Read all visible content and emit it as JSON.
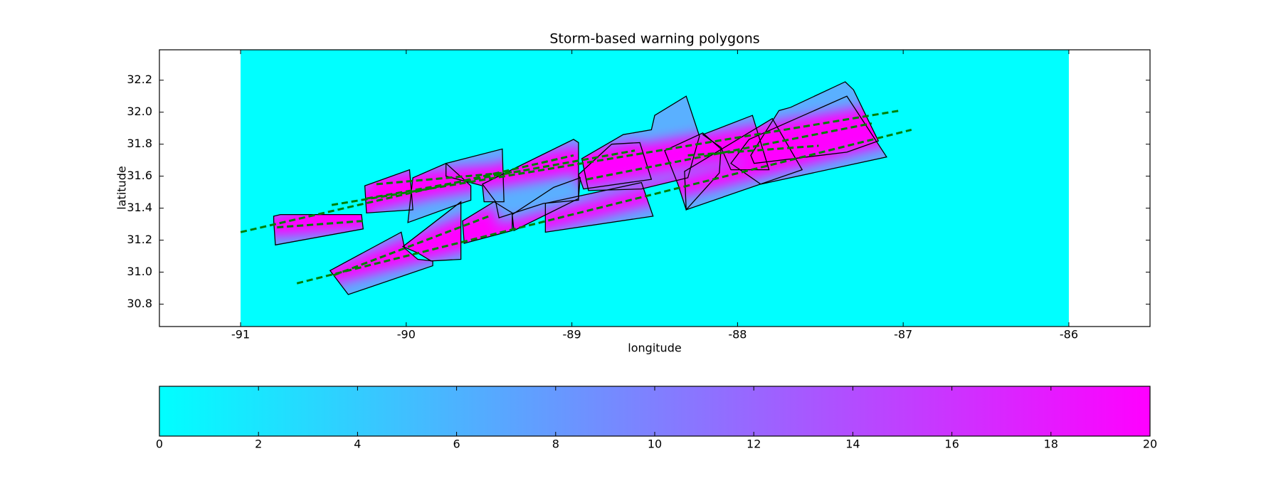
{
  "chart_data": {
    "type": "map",
    "title": "Storm-based warning polygons",
    "xlabel": "longitude",
    "ylabel": "latitude",
    "xlim": [
      -91.49,
      -85.51
    ],
    "ylim": [
      30.66,
      32.39
    ],
    "xticks": [
      -91,
      -90,
      -89,
      -88,
      -87,
      -86
    ],
    "yticks": [
      30.8,
      {
        "value": 31,
        "label": "31.0"
      },
      31.2,
      31.4,
      31.6,
      31.8,
      {
        "value": 32,
        "label": "32.0"
      },
      32.2
    ],
    "field_xlim": [
      -91,
      -86
    ],
    "field_color": "#00ffff",
    "polygon_edge_color": "#000000",
    "track_color": "#008000",
    "polygons": [
      {
        "lon": [
          -90.8,
          -90.76,
          -90.27,
          -90.26,
          -90.79,
          -90.8
        ],
        "lat": [
          31.35,
          31.36,
          31.36,
          31.27,
          31.17,
          31.32
        ]
      },
      {
        "lon": [
          -90.46,
          -90.03,
          -90.01,
          -89.93,
          -89.84,
          -89.84,
          -90.35
        ],
        "lat": [
          31.01,
          31.25,
          31.15,
          31.08,
          31.07,
          31.04,
          30.86
        ]
      },
      {
        "lon": [
          -90.25,
          -89.98,
          -89.97,
          -89.96,
          -90.24
        ],
        "lat": [
          31.54,
          31.64,
          31.52,
          31.39,
          31.37
        ]
      },
      {
        "lon": [
          -89.99,
          -89.96,
          -89.76,
          -89.61,
          -89.61,
          -89.67
        ],
        "lat": [
          31.31,
          31.59,
          31.68,
          31.54,
          31.45,
          31.43
        ]
      },
      {
        "lon": [
          -89.76,
          -89.42,
          -89.41,
          -89.53,
          -89.54,
          -89.76
        ],
        "lat": [
          31.68,
          31.77,
          31.44,
          31.44,
          31.54,
          31.6
        ]
      },
      {
        "lon": [
          -90.02,
          -89.67,
          -89.67,
          -89.85,
          -89.93
        ],
        "lat": [
          31.16,
          31.44,
          31.08,
          31.07,
          31.12
        ]
      },
      {
        "lon": [
          -89.66,
          -89.47,
          -89.36,
          -89.36,
          -89.65
        ],
        "lat": [
          31.32,
          31.44,
          31.37,
          31.26,
          31.18
        ]
      },
      {
        "lon": [
          -89.54,
          -88.99,
          -88.96,
          -88.96,
          -89.17,
          -89.44,
          -89.46
        ],
        "lat": [
          31.55,
          31.83,
          31.81,
          31.45,
          31.43,
          31.34,
          31.44
        ]
      },
      {
        "lon": [
          -89.36,
          -89.11,
          -88.95,
          -88.96,
          -89.35
        ],
        "lat": [
          31.36,
          31.53,
          31.59,
          31.46,
          31.26
        ]
      },
      {
        "lon": [
          -89.16,
          -88.58,
          -88.51,
          -89.16
        ],
        "lat": [
          31.43,
          31.56,
          31.35,
          31.25
        ]
      },
      {
        "lon": [
          -88.94,
          -88.69,
          -88.52,
          -88.5,
          -88.31,
          -88.23,
          -88.3,
          -88.58,
          -88.9
        ],
        "lat": [
          31.71,
          31.86,
          31.89,
          31.98,
          32.1,
          31.85,
          31.59,
          31.52,
          31.51
        ]
      },
      {
        "lon": [
          -88.96,
          -88.76,
          -88.59,
          -88.52,
          -88.93
        ],
        "lat": [
          31.61,
          31.8,
          31.81,
          31.58,
          31.52
        ]
      },
      {
        "lon": [
          -88.44,
          -88.21,
          -88.1,
          -88.11,
          -88.31,
          -88.36
        ],
        "lat": [
          31.76,
          31.87,
          31.77,
          31.62,
          31.39,
          31.55
        ]
      },
      {
        "lon": [
          -88.21,
          -87.91,
          -87.81,
          -88.04,
          -88.1
        ],
        "lat": [
          31.86,
          31.98,
          31.64,
          31.64,
          31.78
        ]
      },
      {
        "lon": [
          -87.92,
          -87.75,
          -87.68,
          -87.35,
          -87.3,
          -87.15,
          -87.34,
          -87.9
        ],
        "lat": [
          31.73,
          32.01,
          32.03,
          32.19,
          32.14,
          31.82,
          31.75,
          31.68
        ]
      },
      {
        "lon": [
          -87.93,
          -87.34,
          -87.1,
          -87.86,
          -88.04
        ],
        "lat": [
          31.83,
          32.1,
          31.72,
          31.55,
          31.68
        ]
      },
      {
        "lon": [
          -88.32,
          -87.79,
          -87.61,
          -88.31
        ],
        "lat": [
          31.63,
          31.96,
          31.64,
          31.39
        ]
      }
    ],
    "tracks": [
      {
        "lon": [
          -91.0,
          -88.99
        ],
        "lat": [
          31.25,
          31.73
        ]
      },
      {
        "lon": [
          -90.66,
          -86.95
        ],
        "lat": [
          30.93,
          31.89
        ]
      },
      {
        "lon": [
          -90.45,
          -87.02
        ],
        "lat": [
          31.42,
          32.01
        ]
      },
      {
        "lon": [
          -90.78,
          -90.26
        ],
        "lat": [
          31.28,
          31.32
        ]
      },
      {
        "lon": [
          -90.44,
          -89.5
        ],
        "lat": [
          30.98,
          31.35
        ]
      },
      {
        "lon": [
          -90.24,
          -88.62
        ],
        "lat": [
          31.46,
          31.76
        ]
      },
      {
        "lon": [
          -90.18,
          -89.31
        ],
        "lat": [
          31.55,
          31.63
        ]
      },
      {
        "lon": [
          -88.91,
          -87.19
        ],
        "lat": [
          31.58,
          31.93
        ]
      },
      {
        "lon": [
          -88.3,
          -87.51
        ],
        "lat": [
          31.73,
          31.79
        ]
      }
    ],
    "colorbar": {
      "lim": [
        0,
        20
      ],
      "ticks": [
        0,
        2,
        4,
        6,
        8,
        10,
        12,
        14,
        16,
        18,
        20
      ],
      "colors": [
        "#00ffff",
        "#ff00ff"
      ]
    }
  }
}
